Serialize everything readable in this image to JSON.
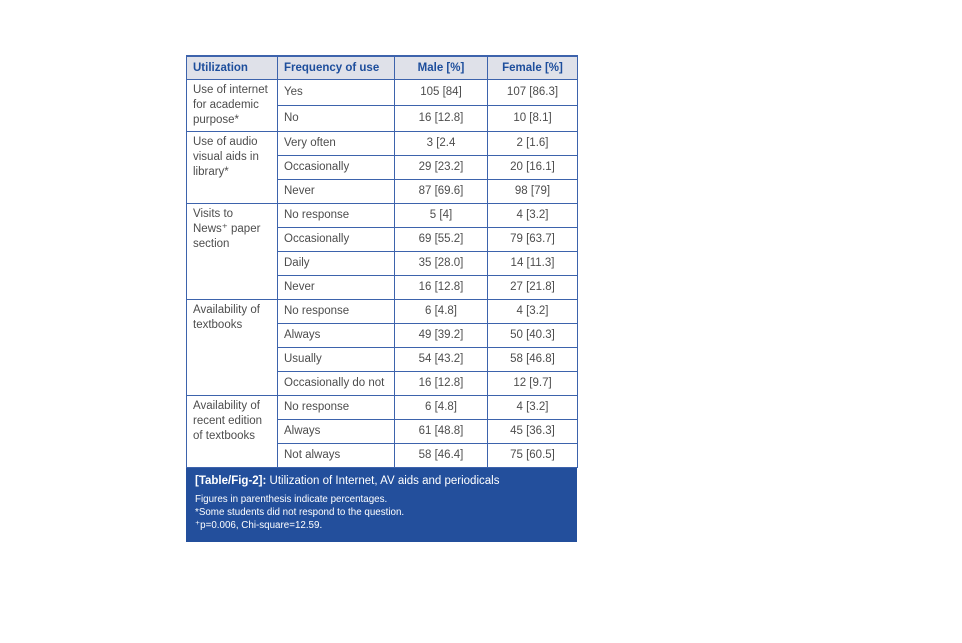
{
  "colors": {
    "border_blue": "#3d63ac",
    "header_bg": "#dfe1e9",
    "header_text": "#1d4e9c",
    "body_text": "#4d4d4d",
    "caption_bg": "#234f9c",
    "caption_text": "#ffffff"
  },
  "table": {
    "headers": [
      "Utilization",
      "Frequency of use",
      "Male [%]",
      "Female [%]"
    ],
    "groups": [
      {
        "label": "Use of internet for academic purpose*",
        "rows": [
          {
            "frequency": "Yes",
            "male": "105 [84]",
            "female": "107 [86.3]"
          },
          {
            "frequency": "No",
            "male": "16 [12.8]",
            "female": "10 [8.1]"
          }
        ]
      },
      {
        "label": "Use of audio visual aids in library*",
        "rows": [
          {
            "frequency": "Very often",
            "male": "3 [2.4",
            "female": "2 [1.6]"
          },
          {
            "frequency": "Occasionally",
            "male": "29 [23.2]",
            "female": "20 [16.1]"
          },
          {
            "frequency": "Never",
            "male": "87 [69.6]",
            "female": "98 [79]"
          }
        ]
      },
      {
        "label": "Visits to News⁺ paper section",
        "rows": [
          {
            "frequency": "No response",
            "male": "5 [4]",
            "female": "4 [3.2]"
          },
          {
            "frequency": "Occasionally",
            "male": "69 [55.2]",
            "female": "79 [63.7]"
          },
          {
            "frequency": "Daily",
            "male": "35 [28.0]",
            "female": "14 [11.3]"
          },
          {
            "frequency": "Never",
            "male": "16 [12.8]",
            "female": "27 [21.8]"
          }
        ]
      },
      {
        "label": "Availability of textbooks",
        "rows": [
          {
            "frequency": "No response",
            "male": "6 [4.8]",
            "female": "4 [3.2]"
          },
          {
            "frequency": "Always",
            "male": "49 [39.2]",
            "female": "50 [40.3]"
          },
          {
            "frequency": "Usually",
            "male": "54 [43.2]",
            "female": "58 [46.8]"
          },
          {
            "frequency": "Occasionally do not",
            "male": "16 [12.8]",
            "female": "12 [9.7]"
          }
        ]
      },
      {
        "label": "Availability of recent edition of textbooks",
        "rows": [
          {
            "frequency": "No response",
            "male": "6 [4.8]",
            "female": "4 [3.2]"
          },
          {
            "frequency": "Always",
            "male": "61 [48.8]",
            "female": "45 [36.3]"
          },
          {
            "frequency": "Not always",
            "male": "58 [46.4]",
            "female": "75 [60.5]"
          }
        ]
      }
    ]
  },
  "caption": {
    "label": "[Table/Fig-2]:",
    "title": "Utilization of Internet, AV aids and periodicals",
    "notes": [
      "Figures in parenthesis indicate percentages.",
      "*Some students did not respond to the question.",
      "⁺p=0.006, Chi-square=12.59."
    ]
  }
}
